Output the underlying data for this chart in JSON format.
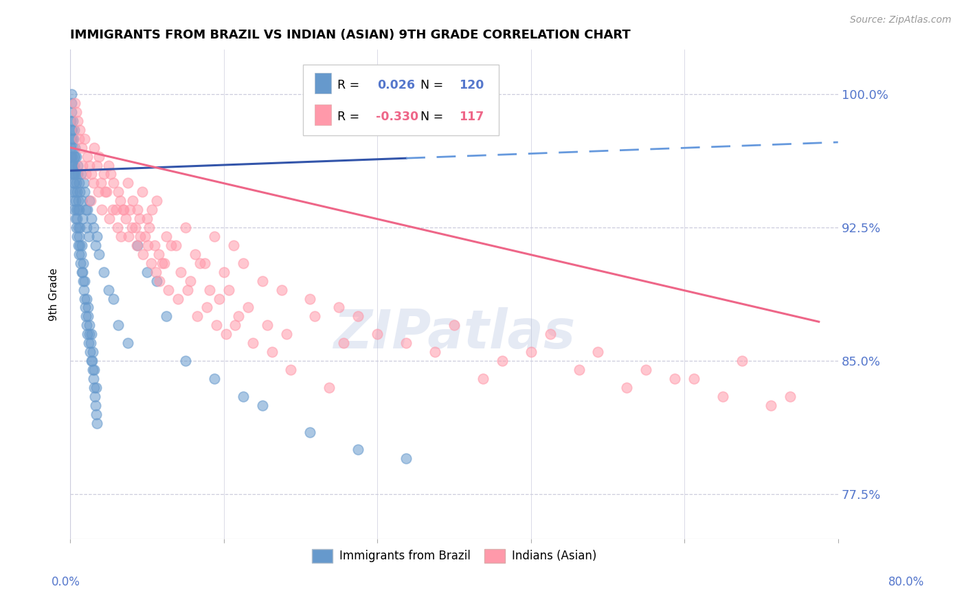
{
  "title": "IMMIGRANTS FROM BRAZIL VS INDIAN (ASIAN) 9TH GRADE CORRELATION CHART",
  "source_text": "Source: ZipAtlas.com",
  "ylabel": "9th Grade",
  "watermark": "ZIPatlas",
  "yticks": [
    77.5,
    85.0,
    92.5,
    100.0
  ],
  "xlim": [
    0.0,
    80.0
  ],
  "ylim": [
    75.0,
    102.5
  ],
  "blue_color": "#6699CC",
  "pink_color": "#FF99AA",
  "blue_line_color": "#3355AA",
  "pink_line_color": "#EE6688",
  "dashed_color": "#6699DD",
  "axis_color": "#5577CC",
  "grid_color": "#CCCCDD",
  "brazil_x": [
    0.05,
    0.08,
    0.1,
    0.12,
    0.15,
    0.18,
    0.2,
    0.22,
    0.25,
    0.28,
    0.3,
    0.32,
    0.35,
    0.38,
    0.4,
    0.42,
    0.45,
    0.48,
    0.5,
    0.55,
    0.6,
    0.65,
    0.7,
    0.75,
    0.8,
    0.85,
    0.9,
    0.95,
    1.0,
    1.1,
    1.2,
    1.3,
    1.4,
    1.5,
    1.6,
    1.7,
    1.8,
    1.9,
    2.0,
    2.2,
    2.4,
    2.6,
    2.8,
    3.0,
    3.5,
    4.0,
    4.5,
    5.0,
    6.0,
    7.0,
    8.0,
    9.0,
    10.0,
    12.0,
    15.0,
    18.0,
    20.0,
    25.0,
    30.0,
    35.0,
    0.06,
    0.09,
    0.13,
    0.16,
    0.21,
    0.24,
    0.29,
    0.33,
    0.36,
    0.41,
    0.44,
    0.49,
    0.53,
    0.56,
    0.61,
    0.64,
    0.69,
    0.73,
    0.76,
    0.81,
    0.84,
    0.89,
    0.93,
    0.96,
    1.02,
    1.08,
    1.12,
    1.18,
    1.22,
    1.28,
    1.32,
    1.38,
    1.42,
    1.48,
    1.52,
    1.58,
    1.62,
    1.68,
    1.72,
    1.78,
    1.82,
    1.88,
    1.92,
    1.98,
    2.02,
    2.08,
    2.12,
    2.18,
    2.22,
    2.28,
    2.32,
    2.38,
    2.42,
    2.48,
    2.52,
    2.58,
    2.62,
    2.68,
    2.72,
    2.78
  ],
  "brazil_y": [
    97.0,
    98.5,
    99.5,
    100.0,
    99.0,
    98.0,
    97.5,
    96.5,
    98.5,
    97.0,
    96.0,
    97.5,
    95.5,
    96.5,
    98.0,
    96.0,
    95.0,
    97.0,
    96.5,
    95.5,
    95.0,
    96.5,
    94.5,
    96.0,
    95.5,
    94.0,
    95.0,
    93.5,
    94.5,
    95.5,
    94.0,
    93.0,
    95.0,
    94.5,
    93.5,
    92.5,
    93.5,
    92.0,
    94.0,
    93.0,
    92.5,
    91.5,
    92.0,
    91.0,
    90.0,
    89.0,
    88.5,
    87.0,
    86.0,
    91.5,
    90.0,
    89.5,
    87.5,
    85.0,
    84.0,
    83.0,
    82.5,
    81.0,
    80.0,
    79.5,
    96.5,
    97.5,
    98.0,
    96.0,
    95.5,
    94.5,
    96.0,
    95.0,
    94.0,
    95.5,
    93.5,
    94.5,
    93.0,
    94.0,
    93.5,
    92.5,
    93.0,
    92.0,
    93.5,
    92.5,
    91.5,
    92.0,
    91.0,
    92.5,
    91.5,
    90.5,
    91.0,
    90.0,
    91.5,
    90.0,
    89.5,
    90.5,
    89.0,
    88.5,
    89.5,
    88.0,
    87.5,
    88.5,
    87.0,
    86.5,
    88.0,
    87.5,
    86.0,
    87.0,
    86.5,
    85.5,
    86.0,
    85.0,
    86.5,
    85.0,
    84.5,
    85.5,
    84.0,
    83.5,
    84.5,
    83.0,
    82.5,
    83.5,
    82.0,
    81.5
  ],
  "indian_x": [
    0.5,
    1.0,
    1.5,
    2.0,
    2.5,
    3.0,
    3.5,
    4.0,
    4.5,
    5.0,
    5.5,
    6.0,
    6.5,
    7.0,
    7.5,
    8.0,
    8.5,
    9.0,
    10.0,
    11.0,
    12.0,
    13.0,
    14.0,
    15.0,
    16.0,
    17.0,
    18.0,
    20.0,
    22.0,
    25.0,
    28.0,
    30.0,
    35.0,
    40.0,
    45.0,
    50.0,
    55.0,
    60.0,
    65.0,
    70.0,
    75.0,
    0.8,
    1.2,
    1.8,
    2.2,
    2.8,
    3.2,
    3.8,
    4.2,
    4.8,
    5.2,
    5.8,
    6.2,
    6.8,
    7.2,
    7.8,
    8.2,
    8.8,
    9.2,
    9.8,
    10.5,
    11.5,
    12.5,
    13.5,
    14.5,
    15.5,
    16.5,
    17.5,
    18.5,
    20.5,
    22.5,
    25.5,
    28.5,
    32.0,
    38.0,
    43.0,
    48.0,
    53.0,
    58.0,
    63.0,
    68.0,
    73.0,
    0.6,
    0.9,
    1.3,
    1.6,
    2.1,
    2.4,
    2.9,
    3.3,
    3.6,
    4.1,
    4.4,
    4.9,
    5.3,
    5.6,
    6.1,
    6.4,
    6.9,
    7.3,
    7.6,
    8.1,
    8.4,
    8.9,
    9.3,
    9.6,
    10.2,
    11.2,
    12.2,
    13.2,
    14.2,
    15.2,
    16.2,
    17.2,
    19.0,
    21.0,
    23.0,
    27.0
  ],
  "indian_y": [
    99.5,
    98.0,
    97.5,
    96.0,
    97.0,
    96.5,
    95.5,
    96.0,
    95.0,
    94.5,
    93.5,
    95.0,
    94.0,
    93.5,
    94.5,
    93.0,
    93.5,
    94.0,
    92.0,
    91.5,
    92.5,
    91.0,
    90.5,
    92.0,
    90.0,
    91.5,
    90.5,
    89.5,
    89.0,
    88.5,
    88.0,
    87.5,
    86.0,
    87.0,
    85.0,
    86.5,
    85.5,
    84.5,
    84.0,
    85.0,
    83.0,
    98.5,
    97.0,
    96.5,
    95.5,
    96.0,
    95.0,
    94.5,
    95.5,
    93.5,
    94.0,
    93.0,
    93.5,
    92.5,
    93.0,
    92.0,
    92.5,
    91.5,
    91.0,
    90.5,
    91.5,
    90.0,
    89.5,
    90.5,
    89.0,
    88.5,
    89.0,
    87.5,
    88.0,
    87.0,
    86.5,
    87.5,
    86.0,
    86.5,
    85.5,
    84.0,
    85.5,
    84.5,
    83.5,
    84.0,
    83.0,
    82.5,
    99.0,
    97.5,
    96.0,
    95.5,
    94.0,
    95.0,
    94.5,
    93.5,
    94.5,
    93.0,
    93.5,
    92.5,
    92.0,
    93.5,
    92.0,
    92.5,
    91.5,
    92.0,
    91.0,
    91.5,
    90.5,
    90.0,
    89.5,
    90.5,
    89.0,
    88.5,
    89.0,
    87.5,
    88.0,
    87.0,
    86.5,
    87.0,
    86.0,
    85.5,
    84.5,
    83.5
  ]
}
